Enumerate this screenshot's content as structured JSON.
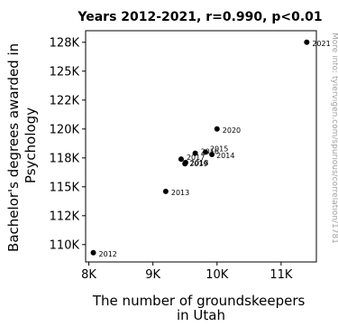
{
  "chart_data": {
    "type": "scatter",
    "title": "Years 2012-2021, r=0.990, p<0.01",
    "xlabel_lines": [
      "The number of groundskeepers",
      "in Utah"
    ],
    "ylabel_lines": [
      "Bachelor's degrees awarded in",
      "Psychology"
    ],
    "xlim": [
      7950,
      11550
    ],
    "ylim": [
      108500,
      128500
    ],
    "x_ticks": [
      {
        "value": 8000,
        "label": "8K"
      },
      {
        "value": 9000,
        "label": "9K"
      },
      {
        "value": 10000,
        "label": "10K"
      },
      {
        "value": 11000,
        "label": "11K"
      }
    ],
    "y_ticks": [
      {
        "value": 110000,
        "label": "110K"
      },
      {
        "value": 112500,
        "label": "112K"
      },
      {
        "value": 115000,
        "label": "115K"
      },
      {
        "value": 117500,
        "label": "118K"
      },
      {
        "value": 120000,
        "label": "120K"
      },
      {
        "value": 122500,
        "label": "122K"
      },
      {
        "value": 125000,
        "label": "125K"
      },
      {
        "value": 127500,
        "label": "128K"
      }
    ],
    "points": [
      {
        "label": "2012",
        "x": 8070,
        "y": 109300
      },
      {
        "label": "2013",
        "x": 9200,
        "y": 114600
      },
      {
        "label": "2014",
        "x": 9920,
        "y": 117800
      },
      {
        "label": "2015",
        "x": 9820,
        "y": 118000
      },
      {
        "label": "2016",
        "x": 9660,
        "y": 117900
      },
      {
        "label": "2017",
        "x": 9440,
        "y": 117400
      },
      {
        "label": "2018",
        "x": 9510,
        "y": 117100
      },
      {
        "label": "2019",
        "x": 9500,
        "y": 117000
      },
      {
        "label": "2020",
        "x": 10000,
        "y": 120000
      },
      {
        "label": "2021",
        "x": 11400,
        "y": 127500
      }
    ],
    "marker_color": "#000000",
    "grid": false
  },
  "watermark": "More info: tylervigen.com/spurious/correlation/1781"
}
